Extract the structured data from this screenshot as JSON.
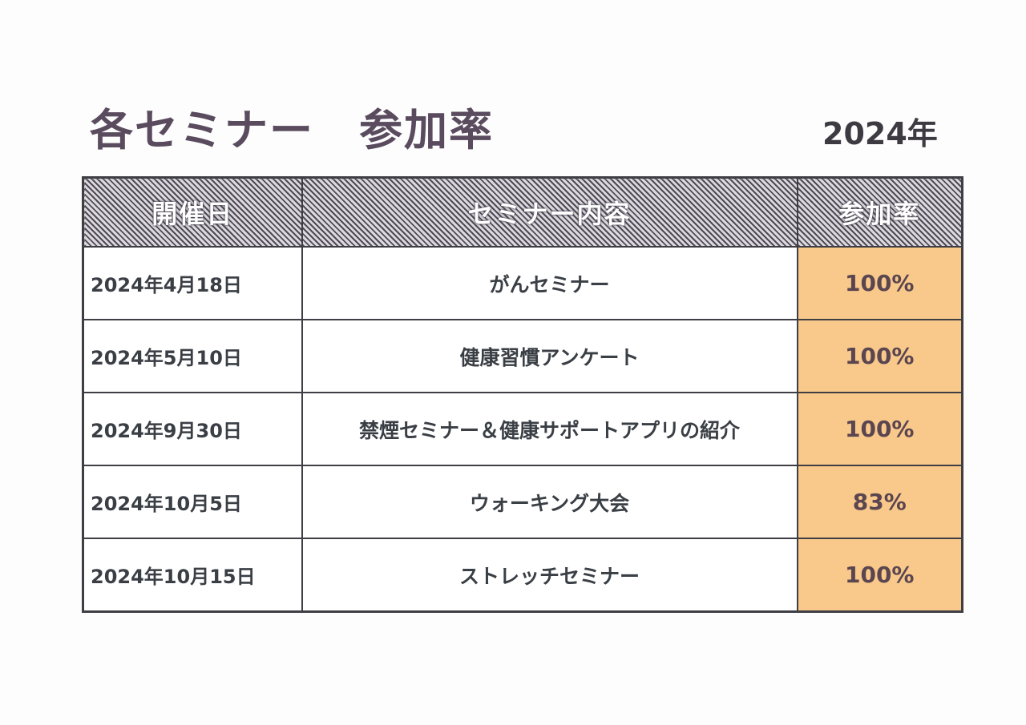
{
  "title": "各セミナー　参加率",
  "year": "2024年",
  "table": {
    "headers": {
      "date": "開催日",
      "content": "セミナー内容",
      "rate": "参加率"
    },
    "rows": [
      {
        "date": "2024年4月18日",
        "content": "がんセミナー",
        "rate": "100%"
      },
      {
        "date": "2024年5月10日",
        "content": "健康習慣アンケート",
        "rate": "100%"
      },
      {
        "date": "2024年9月30日",
        "content": "禁煙セミナー＆健康サポートアプリの紹介",
        "rate": "100%"
      },
      {
        "date": "2024年10月5日",
        "content": "ウォーキング大会",
        "rate": "83%"
      },
      {
        "date": "2024年10月15日",
        "content": "ストレッチセミナー",
        "rate": "100%"
      }
    ]
  },
  "colors": {
    "title": "#5a4c5e",
    "header_stripe_dark": "#4f4a56",
    "rate_fill": "#f8c98a",
    "border": "#3e3e44"
  }
}
